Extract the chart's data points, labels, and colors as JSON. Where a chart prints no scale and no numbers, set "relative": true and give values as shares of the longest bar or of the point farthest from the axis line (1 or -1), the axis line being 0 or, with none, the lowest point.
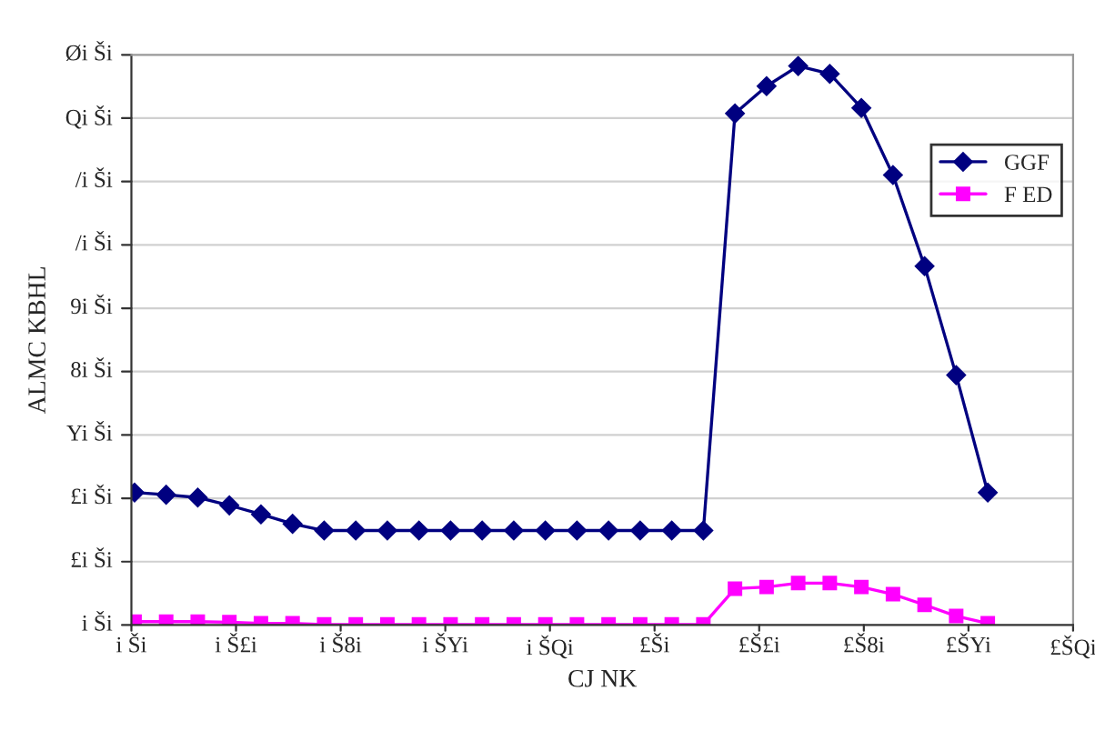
{
  "chart_data": {
    "type": "line",
    "xlabel": "CJ NK",
    "ylabel": "ALMC KBHL",
    "relative": true,
    "categories": [
      null,
      null,
      null,
      null,
      null,
      null,
      null,
      null,
      null,
      null,
      null,
      null,
      null,
      null,
      null,
      null,
      null,
      null,
      null,
      null,
      null,
      null,
      null,
      null,
      null,
      null,
      null,
      null
    ],
    "annotations": [
      "i Ši",
      "i Š£i",
      "i Š8i",
      "i ŠYi",
      "i ŠQi",
      "£Ši",
      "£Š£i",
      "£Š8i",
      "£ŠYi",
      "£ŠQi",
      "i Ši",
      "£i Ši",
      "£i Ši",
      "Yi Ši",
      "8i Ši",
      "9i Ši",
      "/i Ši",
      "/i Ši",
      "Qi Ši",
      "Øi Ši"
    ],
    "grid": "y",
    "legend": "right",
    "series": [
      {
        "name": "GGF",
        "color": "#000080",
        "marker": "diamond",
        "values": [
          0.237,
          0.233,
          0.228,
          0.214,
          0.198,
          0.181,
          0.169,
          0.169,
          0.169,
          0.169,
          0.169,
          0.169,
          0.169,
          0.169,
          0.169,
          0.169,
          0.169,
          0.169,
          0.169,
          0.915,
          0.964,
          1,
          0.986,
          0.925,
          0.805,
          0.642,
          0.447,
          0.237
        ]
      },
      {
        "name": "F ED",
        "color": "#ff00ff",
        "marker": "square",
        "values": [
          0.006,
          0.006,
          0.006,
          0.005,
          0.003,
          0.003,
          0.001,
          0.001,
          0.001,
          0.001,
          0.001,
          0.001,
          0.001,
          0.001,
          0.001,
          0.001,
          0.001,
          0.001,
          0.001,
          0.065,
          0.068,
          0.075,
          0.075,
          0.068,
          0.055,
          0.036,
          0.016,
          0.003
        ]
      }
    ]
  }
}
